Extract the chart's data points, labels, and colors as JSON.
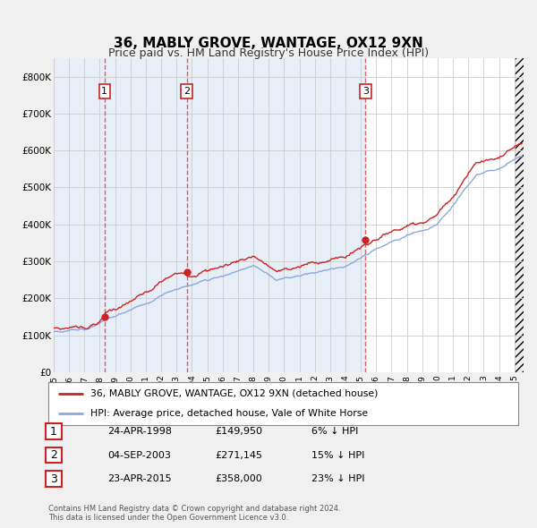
{
  "title": "36, MABLY GROVE, WANTAGE, OX12 9XN",
  "subtitle": "Price paid vs. HM Land Registry's House Price Index (HPI)",
  "ylim": [
    0,
    850000
  ],
  "yticks": [
    0,
    100000,
    200000,
    300000,
    400000,
    500000,
    600000,
    700000,
    800000
  ],
  "ytick_labels": [
    "£0",
    "£100K",
    "£200K",
    "£300K",
    "£400K",
    "£500K",
    "£600K",
    "£700K",
    "£800K"
  ],
  "sale_dates": [
    1998.31,
    2003.67,
    2015.31
  ],
  "sale_prices": [
    149950,
    271145,
    358000
  ],
  "sale_labels": [
    "1",
    "2",
    "3"
  ],
  "sale_date_strs": [
    "24-APR-1998",
    "04-SEP-2003",
    "23-APR-2015"
  ],
  "sale_price_strs": [
    "£149,950",
    "£271,145",
    "£358,000"
  ],
  "sale_hpi_strs": [
    "6% ↓ HPI",
    "15% ↓ HPI",
    "23% ↓ HPI"
  ],
  "vline_color": "#dd4444",
  "property_line_color": "#cc2222",
  "hpi_line_color": "#88aadd",
  "panel_color": "#e8eef8",
  "legend_property": "36, MABLY GROVE, WANTAGE, OX12 9XN (detached house)",
  "legend_hpi": "HPI: Average price, detached house, Vale of White Horse",
  "footnote1": "Contains HM Land Registry data © Crown copyright and database right 2024.",
  "footnote2": "This data is licensed under the Open Government Licence v3.0.",
  "background_color": "#f0f0f0",
  "plot_background": "#ffffff",
  "grid_color": "#cccccc",
  "title_fontsize": 11,
  "subtitle_fontsize": 9
}
